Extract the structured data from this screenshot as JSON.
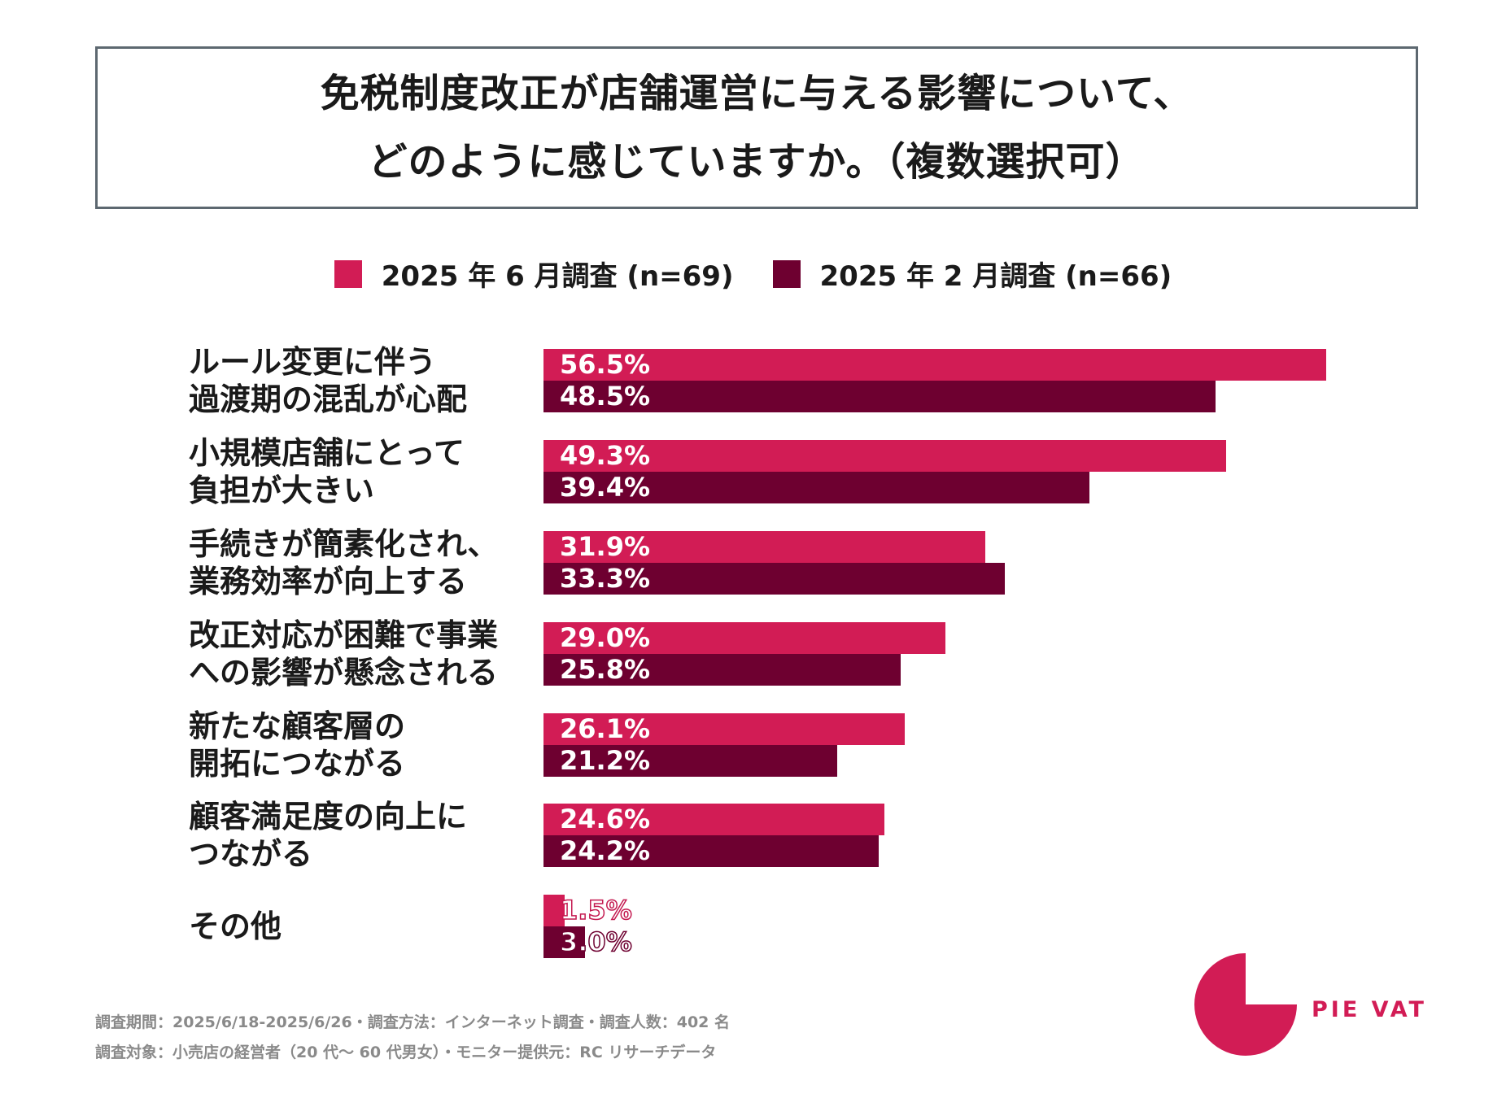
{
  "title": {
    "line1": "免税制度改正が店舗運営に与える影響について、",
    "line2": "どのように感じていますか。（複数選択可）"
  },
  "legend": [
    {
      "label": "2025 年 6 月調査 (n=69)",
      "color": "#d21c55"
    },
    {
      "label": "2025 年 2 月調査 (n=66)",
      "color": "#6e0030"
    }
  ],
  "chart_data": {
    "type": "bar",
    "orientation": "horizontal",
    "categories": [
      [
        "ルール変更に伴う",
        "過渡期の混乱が心配"
      ],
      [
        "小規模店舗にとって",
        "負担が大きい"
      ],
      [
        "手続きが簡素化され、",
        "業務効率が向上する"
      ],
      [
        "改正対応が困難で事業",
        "への影響が懸念される"
      ],
      [
        "新たな顧客層の",
        "開拓につながる"
      ],
      [
        "顧客満足度の向上に",
        "つながる"
      ],
      [
        "その他"
      ]
    ],
    "series": [
      {
        "name": "2025 年 6 月調査 (n=69)",
        "color": "#d21c55",
        "values": [
          56.5,
          49.3,
          31.9,
          29.0,
          26.1,
          24.6,
          1.5
        ],
        "labels": [
          "56.5%",
          "49.3%",
          "31.9%",
          "29.0%",
          "26.1%",
          "24.6%",
          "1.5%"
        ]
      },
      {
        "name": "2025 年 2 月調査 (n=66)",
        "color": "#6e0030",
        "values": [
          48.5,
          39.4,
          33.3,
          25.8,
          21.2,
          24.2,
          3.0
        ],
        "labels": [
          "48.5%",
          "39.4%",
          "33.3%",
          "25.8%",
          "21.2%",
          "24.2%",
          "3.0%"
        ]
      }
    ],
    "unit": "%"
  },
  "footer": {
    "line1": "調査期間：2025/6/18-2025/6/26・調査方法：インターネット調査・調査人数：402 名",
    "line2": "調査対象：小売店の経営者（20 代～ 60 代男女）・モニター提供元：RC リサーチデータ"
  },
  "logo": {
    "text": "PIE VAT",
    "color": "#d21c55",
    "icon": "pie-chart-logo-icon"
  }
}
